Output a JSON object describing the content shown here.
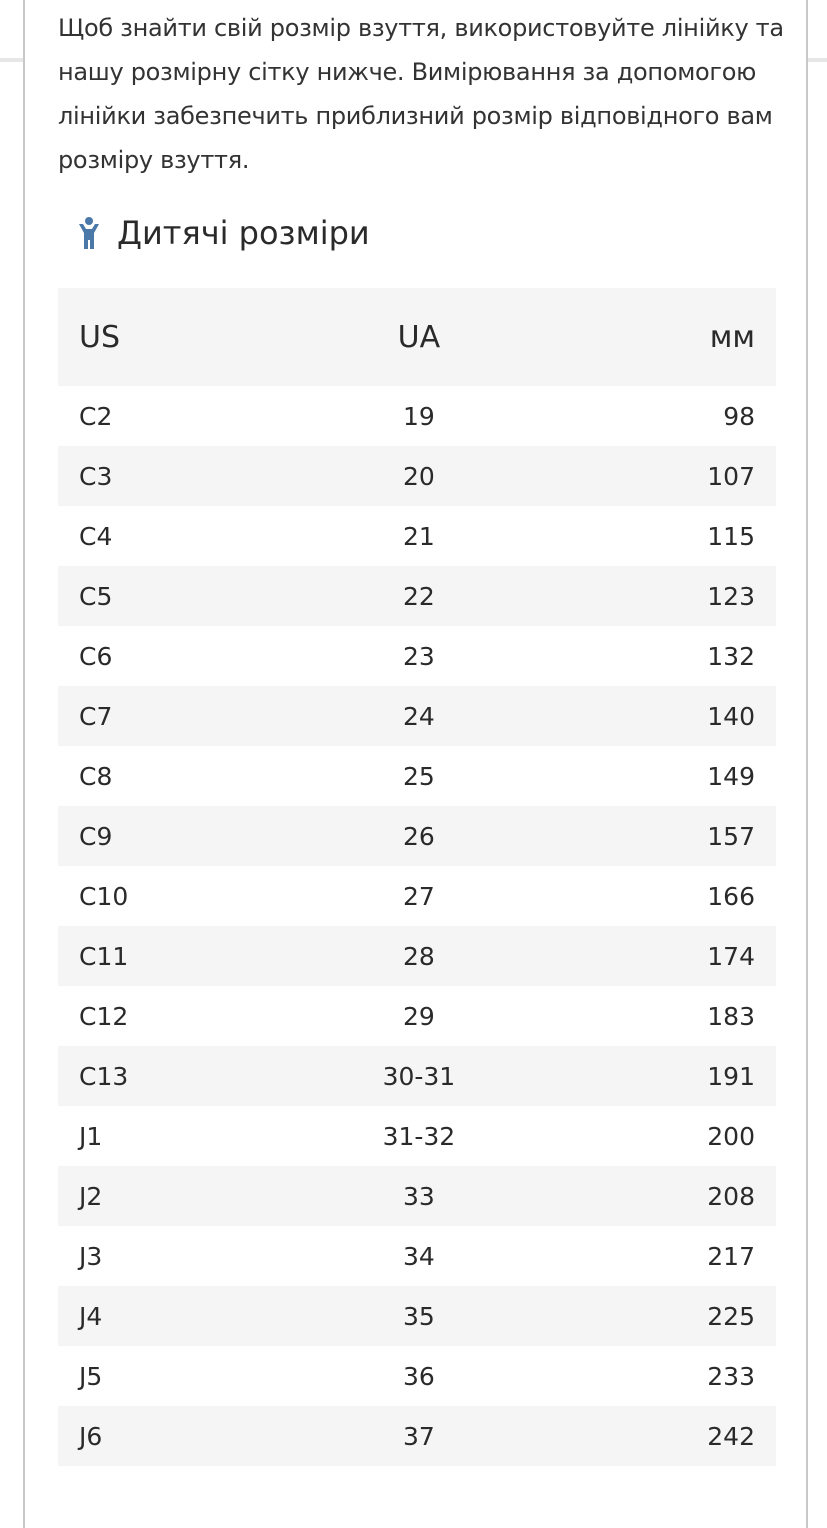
{
  "intro_text": "Щоб знайти свій розмір взуття, використовуйте лінійку та нашу розмірну сітку нижче. Вимірювання за допомогою лінійки забезпечить приблизний розмір відповідного вам розміру взуття.",
  "section": {
    "title": "Дитячі розміри",
    "icon": "child-icon",
    "icon_color": "#4a78a8"
  },
  "table": {
    "headers": [
      "US",
      "UA",
      "мм"
    ],
    "rows": [
      [
        "C2",
        "19",
        "98"
      ],
      [
        "C3",
        "20",
        "107"
      ],
      [
        "C4",
        "21",
        "115"
      ],
      [
        "C5",
        "22",
        "123"
      ],
      [
        "C6",
        "23",
        "132"
      ],
      [
        "C7",
        "24",
        "140"
      ],
      [
        "C8",
        "25",
        "149"
      ],
      [
        "C9",
        "26",
        "157"
      ],
      [
        "C10",
        "27",
        "166"
      ],
      [
        "C11",
        "28",
        "174"
      ],
      [
        "C12",
        "29",
        "183"
      ],
      [
        "C13",
        "30-31",
        "191"
      ],
      [
        "J1",
        "31-32",
        "200"
      ],
      [
        "J2",
        "33",
        "208"
      ],
      [
        "J3",
        "34",
        "217"
      ],
      [
        "J4",
        "35",
        "225"
      ],
      [
        "J5",
        "36",
        "233"
      ],
      [
        "J6",
        "37",
        "242"
      ]
    ]
  }
}
